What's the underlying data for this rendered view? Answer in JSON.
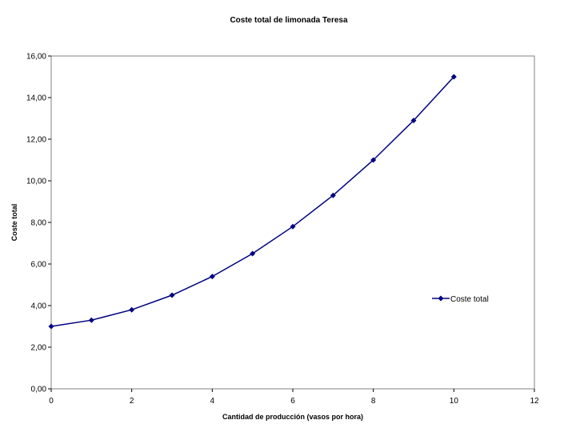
{
  "chart_data": {
    "type": "scatter",
    "title": "Coste total de limonada Teresa",
    "xlabel": "Cantidad de producción (vasos por hora)",
    "ylabel": "Coste total",
    "xlim": [
      0,
      12
    ],
    "ylim": [
      0,
      16
    ],
    "x_ticks": [
      0,
      2,
      4,
      6,
      8,
      10,
      12
    ],
    "y_ticks": [
      0,
      2,
      4,
      6,
      8,
      10,
      12,
      14,
      16
    ],
    "x_tick_labels": [
      "0",
      "2",
      "4",
      "6",
      "8",
      "10",
      "12"
    ],
    "y_tick_labels": [
      "0,00",
      "2,00",
      "4,00",
      "6,00",
      "8,00",
      "10,00",
      "12,00",
      "14,00",
      "16,00"
    ],
    "grid": false,
    "legend_position": "right",
    "series": [
      {
        "name": "Coste total",
        "color": "#000080",
        "marker": "diamond",
        "line": true,
        "x": [
          0,
          1,
          2,
          3,
          4,
          5,
          6,
          7,
          8,
          9,
          10
        ],
        "y": [
          3.0,
          3.3,
          3.8,
          4.5,
          5.4,
          6.5,
          7.8,
          9.3,
          11.0,
          12.9,
          15.0
        ]
      }
    ]
  }
}
